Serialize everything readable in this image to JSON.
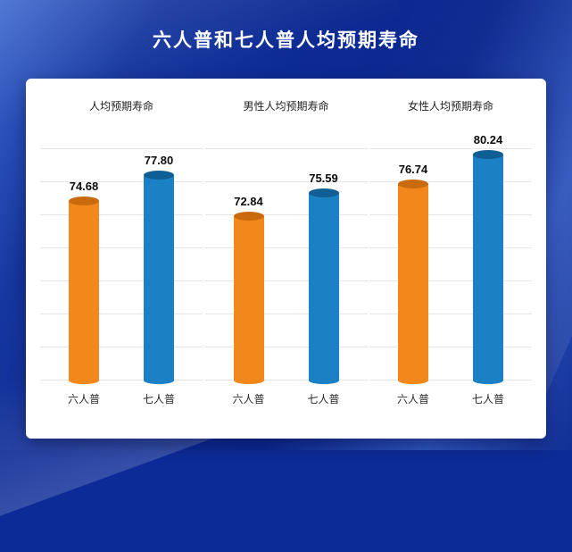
{
  "page": {
    "title": "六人普和七人普人均预期寿命"
  },
  "chart_data": {
    "type": "bar",
    "categories": [
      "六人普",
      "七人普"
    ],
    "panels": [
      {
        "title": "人均预期寿命",
        "values": [
          74.68,
          77.8
        ],
        "labels": [
          "74.68",
          "77.80"
        ]
      },
      {
        "title": "男性人均预期寿命",
        "values": [
          72.84,
          75.59
        ],
        "labels": [
          "72.84",
          "75.59"
        ]
      },
      {
        "title": "女性人均预期寿命",
        "values": [
          76.74,
          80.24
        ],
        "labels": [
          "76.74",
          "80.24"
        ]
      }
    ],
    "series_styles": [
      {
        "name": "六人普",
        "body": "#F2881B",
        "cap": "#C96A0E"
      },
      {
        "name": "七人普",
        "body": "#1B80C4",
        "cap": "#0F5E94"
      }
    ],
    "ylim": [
      53,
      81
    ],
    "grid": true,
    "legend_position": "none",
    "value_labels": true
  },
  "colors": {
    "background": "#0D2B96",
    "card": "#FFFFFF",
    "title_text": "#FFFFFF",
    "gridline": "#E6E6E6"
  }
}
